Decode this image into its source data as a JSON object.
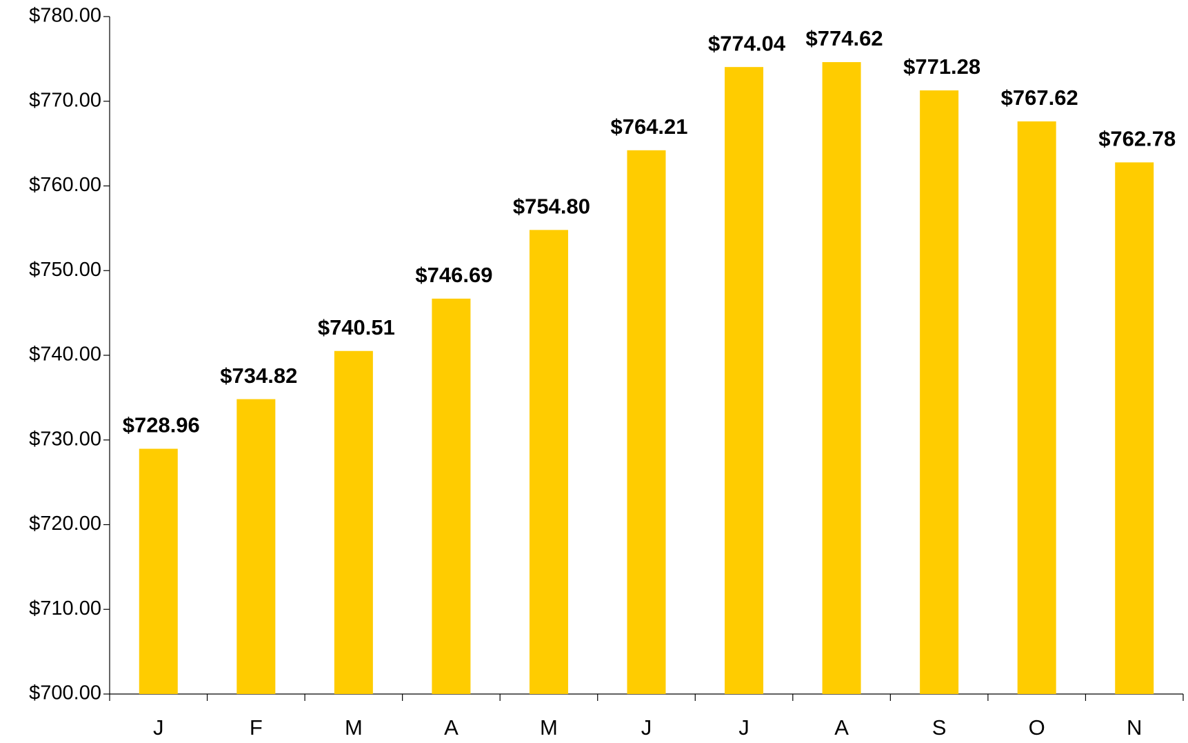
{
  "chart_data": {
    "type": "bar",
    "categories": [
      "J",
      "F",
      "M",
      "A",
      "M",
      "J",
      "J",
      "A",
      "S",
      "O",
      "N"
    ],
    "values": [
      728.96,
      734.82,
      740.51,
      746.69,
      754.8,
      764.21,
      774.04,
      774.62,
      771.28,
      767.62,
      762.78
    ],
    "value_labels": [
      "$728.96",
      "$734.82",
      "$740.51",
      "$746.69",
      "$754.80",
      "$764.21",
      "$774.04",
      "$774.62",
      "$771.28",
      "$767.62",
      "$762.78"
    ],
    "color": "#ffcc00",
    "ylim": [
      700,
      780
    ],
    "yticks": [
      {
        "value": 700,
        "label": "$700.00"
      },
      {
        "value": 710,
        "label": "$710.00"
      },
      {
        "value": 720,
        "label": "$720.00"
      },
      {
        "value": 730,
        "label": "$730.00"
      },
      {
        "value": 740,
        "label": "$740.00"
      },
      {
        "value": 750,
        "label": "$750.00"
      },
      {
        "value": 760,
        "label": "$760.00"
      },
      {
        "value": 770,
        "label": "$770.00"
      },
      {
        "value": 780,
        "label": "$780.00"
      }
    ],
    "grid": false
  }
}
